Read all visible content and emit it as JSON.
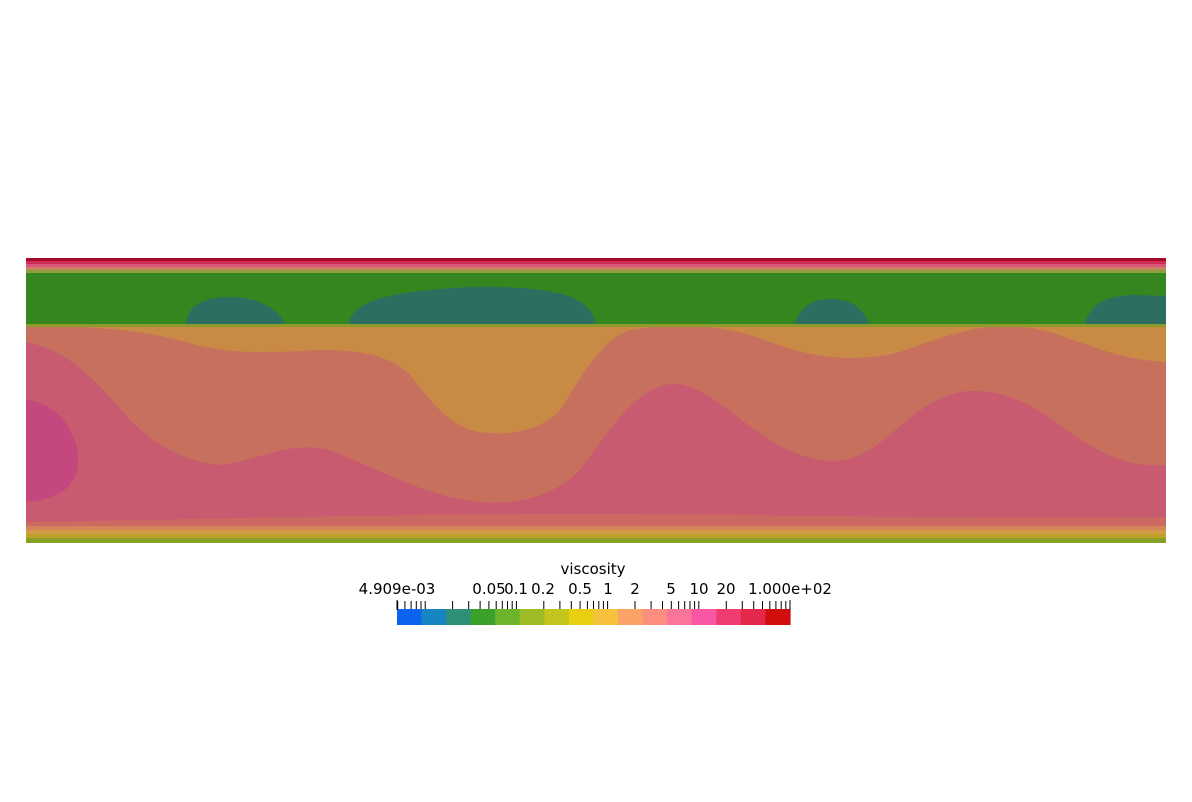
{
  "colorbar": {
    "title": "viscosity",
    "min_label": "4.909e-03",
    "max_label": "1.000e+02",
    "tick_labels": [
      "0.05",
      "0.1",
      "0.2",
      "0.5",
      "1",
      "2",
      "5",
      "10",
      "20"
    ],
    "scale": "log",
    "colors": [
      "#0a64ee",
      "#1784c4",
      "#2f8f78",
      "#3aa22a",
      "#6cb52a",
      "#9dbc25",
      "#c4c51c",
      "#e8cf10",
      "#f7c13e",
      "#fba266",
      "#fc8e80",
      "#fb7499",
      "#f957a3",
      "#ef3d71",
      "#e3284c",
      "#d10d0d"
    ]
  },
  "field_colors": {
    "dark_green": "#2d6e61",
    "green": "#35861f",
    "orange": "#c98a46",
    "salmon": "#c8705e",
    "pink": "#c85b6f",
    "magenta": "#c4477f",
    "crimson": "#b0103a"
  }
}
